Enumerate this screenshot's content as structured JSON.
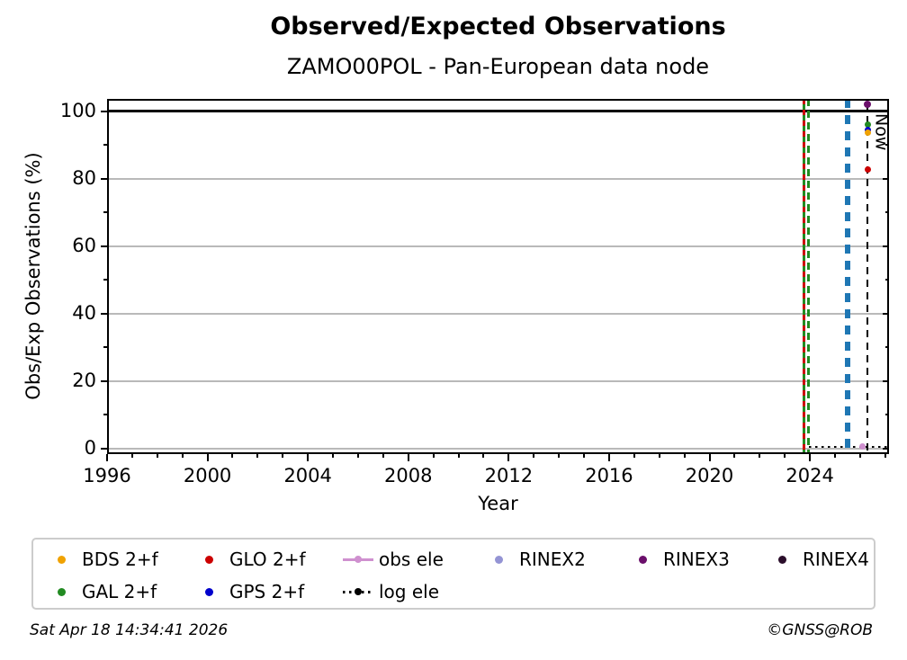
{
  "figure": {
    "footer_left": "Sat Apr 18 14:34:41 2026",
    "footer_right": "©GNSS@ROB"
  },
  "chart_data": {
    "type": "scatter",
    "title": "Observed/Expected Observations",
    "subtitle": "ZAMO00POL - Pan-European data node",
    "xlabel": "Year",
    "ylabel": "Obs/Exp Observations (%)",
    "xlim": [
      1996,
      2027.15
    ],
    "ylim": [
      -1.6,
      103.7
    ],
    "x_major_ticks": [
      1996,
      2000,
      2004,
      2008,
      2012,
      2016,
      2020,
      2024
    ],
    "x_minor_step": 1,
    "y_major_ticks": [
      0,
      20,
      40,
      60,
      80,
      100
    ],
    "y_minor_ticks": [
      10,
      30,
      50,
      70,
      90
    ],
    "grid": "horizontal",
    "grid_color": "#b9b9b9",
    "now_label": "Now",
    "now_year": 2026.3,
    "points": [
      {
        "series": "RINEX3",
        "x": 2026.3,
        "y": 102.0,
        "color": "#6b0f6b",
        "size": 8
      },
      {
        "series": "GAL 2+f",
        "x": 2026.3,
        "y": 96.0,
        "color": "#228b22",
        "size": 7
      },
      {
        "series": "GPS 2+f",
        "x": 2026.3,
        "y": 94.6,
        "color": "#0000cc",
        "size": 7
      },
      {
        "series": "BDS 2+f",
        "x": 2026.3,
        "y": 93.7,
        "color": "#f0a202",
        "size": 7
      },
      {
        "series": "GLO 2+f",
        "x": 2026.3,
        "y": 82.9,
        "color": "#cc0000",
        "size": 7
      },
      {
        "series": "obs ele",
        "x": 2026.1,
        "y": 0.7,
        "color": "#cf90cf",
        "size": 7
      }
    ],
    "vlines": [
      {
        "name": "gal-start-solid",
        "x": 2023.75,
        "color": "#228b22",
        "style": "solid",
        "width": 3
      },
      {
        "name": "glo-start-dashed",
        "x": 2023.75,
        "color": "#cc0000",
        "style": "dashed",
        "width": 3,
        "dash": 6,
        "gap": 6
      },
      {
        "name": "gal-start-dashed",
        "x": 2023.95,
        "color": "#228b22",
        "style": "dashed",
        "width": 3,
        "dash": 8,
        "gap": 5
      },
      {
        "name": "gps-thick-dashed",
        "x": 2025.5,
        "color": "#1f77b4",
        "style": "dashed",
        "width": 6,
        "dash": 10,
        "gap": 8
      },
      {
        "name": "now-line",
        "x": 2026.3,
        "color": "#000000",
        "style": "dashed",
        "width": 2,
        "dash": 8,
        "gap": 6,
        "y_top": 102.4
      }
    ],
    "hlines": [
      {
        "name": "reference-100pct",
        "y": 100,
        "x0": 1996,
        "x1": 2027.15,
        "color": "#000000",
        "style": "solid",
        "width": 3
      },
      {
        "name": "log-ele",
        "y": 0.5,
        "x0": 2023.95,
        "x1": 2027.15,
        "color": "#000000",
        "style": "dotted",
        "width": 2.5,
        "dot": 2.5,
        "gap": 4.5
      }
    ],
    "legend": {
      "items": [
        {
          "id": "bds-2f",
          "label": "BDS 2+f",
          "marker": "dot",
          "color": "#f0a202"
        },
        {
          "id": "glo-2f",
          "label": "GLO 2+f",
          "marker": "dot",
          "color": "#cc0000"
        },
        {
          "id": "obs-ele",
          "label": "obs ele",
          "marker": "line-dot",
          "color": "#cf90cf"
        },
        {
          "id": "rinex2",
          "label": "RINEX2",
          "marker": "dot",
          "color": "#9494d4"
        },
        {
          "id": "rinex3",
          "label": "RINEX3",
          "marker": "dot",
          "color": "#6b0f6b"
        },
        {
          "id": "rinex4",
          "label": "RINEX4",
          "marker": "dot",
          "color": "#2b0e2b"
        },
        {
          "id": "gal-2f",
          "label": "GAL 2+f",
          "marker": "dot",
          "color": "#228b22"
        },
        {
          "id": "gps-2f",
          "label": "GPS 2+f",
          "marker": "dot",
          "color": "#0000cc"
        },
        {
          "id": "log-ele",
          "label": "log ele",
          "marker": "dotted-line-dot",
          "color": "#000000"
        }
      ]
    }
  }
}
